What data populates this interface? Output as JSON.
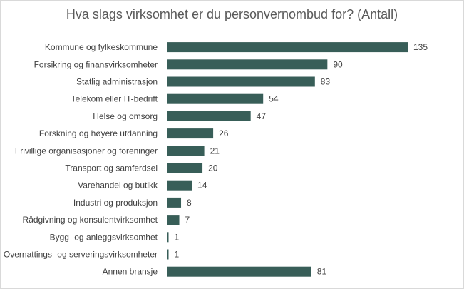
{
  "chart_data": {
    "type": "bar",
    "orientation": "horizontal",
    "title": "Hva slags virksomhet er du personvernombud for? (Antall)",
    "categories": [
      "Kommune og fylkeskommune",
      "Forsikring og finansvirksomheter",
      "Statlig administrasjon",
      "Telekom eller IT-bedrift",
      "Helse og omsorg",
      "Forskning og høyere utdanning",
      "Frivillige organisasjoner og foreninger",
      "Transport og samferdsel",
      "Varehandel og butikk",
      "Industri og produksjon",
      "Rådgivning og konsulentvirksomhet",
      "Bygg- og anleggsvirksomhet",
      "Overnattings- og serveringsvirksomheter",
      "Annen bransje"
    ],
    "values": [
      135,
      90,
      83,
      54,
      47,
      26,
      21,
      20,
      14,
      8,
      7,
      1,
      1,
      81
    ],
    "xlim": [
      0,
      135
    ],
    "grid": false,
    "legend": "none",
    "bar_color": "#385e58"
  }
}
